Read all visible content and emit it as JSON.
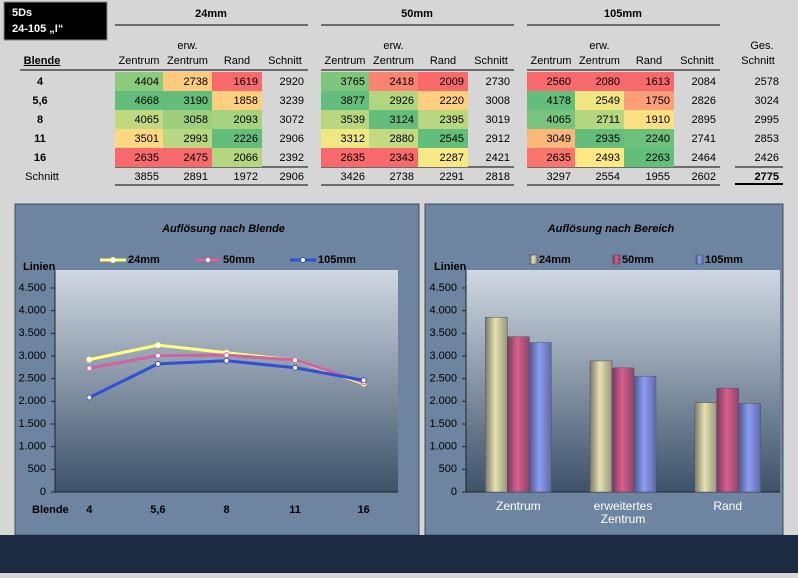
{
  "header": {
    "line1": "5Ds",
    "line2": "24-105 „I“"
  },
  "table": {
    "groups": [
      "24mm",
      "50mm",
      "105mm"
    ],
    "col_headers": [
      [
        "Zentrum"
      ],
      [
        "erw.",
        "Zentrum"
      ],
      [
        "Rand"
      ],
      [
        "Schnitt"
      ]
    ],
    "row_header": "Blende",
    "total_header": [
      "Ges.",
      "Schnitt"
    ],
    "rows": [
      {
        "label": "4",
        "cells": [
          4404,
          2738,
          1619,
          2920,
          3765,
          2418,
          2009,
          2730,
          2560,
          2080,
          1613,
          2084
        ],
        "total": 2578
      },
      {
        "label": "5,6",
        "cells": [
          4668,
          3190,
          1858,
          3239,
          3877,
          2926,
          2220,
          3008,
          4178,
          2549,
          1750,
          2826
        ],
        "total": 3024
      },
      {
        "label": "8",
        "cells": [
          4065,
          3058,
          2093,
          3072,
          3539,
          3124,
          2395,
          3019,
          4065,
          2711,
          1910,
          2895
        ],
        "total": 2995
      },
      {
        "label": "11",
        "cells": [
          3501,
          2993,
          2226,
          2906,
          3312,
          2880,
          2545,
          2912,
          3049,
          2935,
          2240,
          2741
        ],
        "total": 2853
      },
      {
        "label": "16",
        "cells": [
          2635,
          2475,
          2066,
          2392,
          2635,
          2343,
          2287,
          2421,
          2635,
          2493,
          2263,
          2464
        ],
        "total": 2426
      },
      {
        "label": "Schnitt",
        "cells": [
          3855,
          2891,
          1972,
          2906,
          3426,
          2738,
          2291,
          2818,
          3297,
          2554,
          1955,
          2602
        ],
        "total": 2775
      }
    ]
  },
  "chart_data": [
    {
      "type": "line",
      "title": "Auflösung nach Blende",
      "y_label": "Linien",
      "x_label": "Blende",
      "categories": [
        "4",
        "5,6",
        "8",
        "11",
        "16"
      ],
      "series": [
        {
          "name": "24mm",
          "color": "#ffff80",
          "values": [
            2920,
            3239,
            3072,
            2906,
            2392
          ]
        },
        {
          "name": "50mm",
          "color": "#d062a0",
          "values": [
            2730,
            3008,
            3019,
            2912,
            2421
          ]
        },
        {
          "name": "105mm",
          "color": "#3050d8",
          "values": [
            2084,
            2826,
            2895,
            2741,
            2464
          ]
        }
      ],
      "ylim": [
        0,
        4500
      ],
      "yticks": [
        0,
        {
          "value": 500,
          "label": "500"
        },
        {
          "value": 1000,
          "label": "1.000"
        },
        {
          "value": 1500,
          "label": "1.500"
        },
        {
          "value": 2000,
          "label": "2.000"
        },
        {
          "value": 2500,
          "label": "2.500"
        },
        {
          "value": 3000,
          "label": "3.000"
        },
        {
          "value": 3500,
          "label": "3.500"
        },
        {
          "value": 4000,
          "label": "4.000"
        },
        {
          "value": 4500,
          "label": "4.500"
        }
      ],
      "grid": false
    },
    {
      "type": "bar",
      "title": "Auflösung nach Bereich",
      "y_label": "Linien",
      "categories": [
        "Zentrum",
        "erweitertes Zentrum",
        "Rand"
      ],
      "series": [
        {
          "name": "24mm",
          "color": "#e6e2ae",
          "values": [
            3855,
            2891,
            1972
          ]
        },
        {
          "name": "50mm",
          "color": "#d8608c",
          "values": [
            3426,
            2738,
            2291
          ]
        },
        {
          "name": "105mm",
          "color": "#8c9cf0",
          "values": [
            3297,
            2554,
            1955
          ]
        }
      ],
      "ylim": [
        0,
        4500
      ],
      "yticks": [
        0,
        {
          "value": 500,
          "label": "500"
        },
        {
          "value": 1000,
          "label": "1.000"
        },
        {
          "value": 1500,
          "label": "1.500"
        },
        {
          "value": 2000,
          "label": "2.000"
        },
        {
          "value": 2500,
          "label": "2.500"
        },
        {
          "value": 3000,
          "label": "3.000"
        },
        {
          "value": 3500,
          "label": "3.500"
        },
        {
          "value": 4000,
          "label": "4.000"
        },
        {
          "value": 4500,
          "label": "4.500"
        }
      ],
      "grid": false
    }
  ]
}
